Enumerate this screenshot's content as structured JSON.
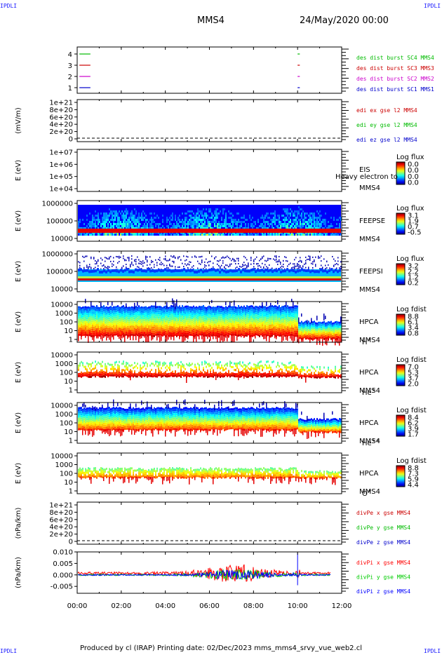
{
  "header": {
    "spacecraft": "MMS4",
    "datetime": "24/May/2020 00:00",
    "corner_mark": "IPDLI"
  },
  "footer": {
    "text": "Produced by cl (IRAP)   Printing date: 02/Dec/2023   mms_mms4_srvy_vue_web2.cl"
  },
  "chart_data": [
    {
      "type": "line",
      "panel": "burst-availability",
      "y_ticks": [
        "4",
        "3",
        "2",
        "1"
      ],
      "series": [
        {
          "name": "des dist burst SC1 MMS1",
          "color": "#0000cc",
          "level": 1,
          "segments": [
            [
              0.1,
              0.6
            ],
            [
              10.0,
              10.1
            ]
          ]
        },
        {
          "name": "des dist burst SC2 MMS2",
          "color": "#cc00cc",
          "level": 2,
          "segments": [
            [
              0.1,
              0.6
            ],
            [
              10.0,
              10.1
            ]
          ]
        },
        {
          "name": "des dist burst SC3 MMS3",
          "color": "#cc0000",
          "level": 3,
          "segments": [
            [
              0.1,
              0.6
            ],
            [
              10.0,
              10.1
            ]
          ]
        },
        {
          "name": "des dist burst SC4 MMS4",
          "color": "#00bb00",
          "level": 4,
          "segments": [
            [
              0.1,
              0.6
            ],
            [
              10.0,
              10.1
            ]
          ]
        }
      ]
    },
    {
      "type": "line",
      "panel": "edi-electric-field",
      "ylabel": "(mV/m)",
      "y_ticks": [
        "1e+21",
        "8e+20",
        "6e+20",
        "4e+20",
        "2e+20",
        "0"
      ],
      "series": [
        {
          "name": "edi ex gse l2 MMS4",
          "color": "#cc0000"
        },
        {
          "name": "edi ey gse l2 MMS4",
          "color": "#00bb00"
        },
        {
          "name": "edi ez gse l2 MMS4",
          "color": "#0000cc"
        }
      ]
    },
    {
      "type": "heatmap",
      "panel": "eis",
      "ylabel": "E (eV)",
      "y_ticks": [
        "1e+07",
        "1e+06",
        "1e+05",
        "1e+04"
      ],
      "inst": [
        "EIS",
        "MMS4"
      ],
      "overlay": "Heavy electron to",
      "cbar_title": "Log flux",
      "cbar_ticks": [
        "0.0",
        "0.0",
        "0.0",
        "0.0"
      ]
    },
    {
      "type": "heatmap",
      "panel": "feeps-electron",
      "ylabel": "E (eV)",
      "y_ticks": [
        "1000000",
        "100000",
        "10000"
      ],
      "inst": [
        "FEEPSE",
        "MMS4"
      ],
      "cbar_title": "Log flux",
      "cbar_ticks": [
        "3.1",
        "1.9",
        "0.7",
        "-0.5"
      ]
    },
    {
      "type": "heatmap",
      "panel": "feeps-ion",
      "ylabel": "E (eV)",
      "y_ticks": [
        "1000000",
        "100000",
        "10000"
      ],
      "inst": [
        "FEEPSI",
        "MMS4"
      ],
      "cbar_title": "Log flux",
      "cbar_ticks": [
        "3.2",
        "2.2",
        "1.2",
        "0.2"
      ]
    },
    {
      "type": "heatmap",
      "panel": "hpca-h",
      "ylabel": "E (eV)",
      "y_ticks": [
        "10000",
        "1000",
        "100",
        "10",
        "1"
      ],
      "inst": [
        "HPCA",
        "MMS4"
      ],
      "species": "H",
      "species_sup": "+",
      "cbar_title": "Log fdist",
      "cbar_ticks": [
        "8.8",
        "6.1",
        "3.4",
        "0.8"
      ]
    },
    {
      "type": "heatmap",
      "panel": "hpca-he1",
      "ylabel": "E (eV)",
      "y_ticks": [
        "10000",
        "1000",
        "100",
        "10",
        "1"
      ],
      "inst": [
        "HPCA",
        "MMS4"
      ],
      "species": "He",
      "species_sup": "+",
      "cbar_title": "Log fdist",
      "cbar_ticks": [
        "7.0",
        "5.3",
        "3.7",
        "2.0"
      ]
    },
    {
      "type": "heatmap",
      "panel": "hpca-he2",
      "ylabel": "E (eV)",
      "y_ticks": [
        "10000",
        "1000",
        "100",
        "10",
        "1"
      ],
      "inst": [
        "HPCA",
        "MMS4"
      ],
      "species": "He",
      "species_sup": "++",
      "cbar_title": "Log fdist",
      "cbar_ticks": [
        "8.4",
        "6.2",
        "3.9",
        "1.7"
      ]
    },
    {
      "type": "heatmap",
      "panel": "hpca-o",
      "ylabel": "E (eV)",
      "y_ticks": [
        "10000",
        "1000",
        "100",
        "10",
        "1"
      ],
      "inst": [
        "HPCA",
        "MMS4"
      ],
      "species": "O",
      "species_sup": "+",
      "cbar_title": "Log fdist",
      "cbar_ticks": [
        "8.8",
        "7.3",
        "5.9",
        "4.4"
      ]
    },
    {
      "type": "line",
      "panel": "divpe",
      "ylabel": "(nPa/km)",
      "y_ticks": [
        "1e+21",
        "8e+20",
        "6e+20",
        "4e+20",
        "2e+20",
        "0"
      ],
      "series": [
        {
          "name": "divPe x gse MMS4",
          "color": "#cc0000"
        },
        {
          "name": "divPe y gse MMS4",
          "color": "#00bb00"
        },
        {
          "name": "divPe z gse MMS4",
          "color": "#0000cc"
        }
      ]
    },
    {
      "type": "line",
      "panel": "divpi",
      "ylabel": "(nPa/km)",
      "y_ticks": [
        "0.010",
        "0.005",
        "0.000",
        "-0.005"
      ],
      "ylim": [
        -0.008,
        0.01
      ],
      "xlim": [
        0,
        11.5
      ],
      "series": [
        {
          "name": "divPi x gse MMS4",
          "color": "#ff0000"
        },
        {
          "name": "divPi y gse MMS4",
          "color": "#00cc00"
        },
        {
          "name": "divPi z gse MMS4",
          "color": "#0000ff"
        }
      ]
    }
  ],
  "x_axis": {
    "ticks": [
      "00:00",
      "02:00",
      "04:00",
      "06:00",
      "08:00",
      "10:00",
      "12:00"
    ],
    "range_hours": [
      0,
      12
    ]
  }
}
